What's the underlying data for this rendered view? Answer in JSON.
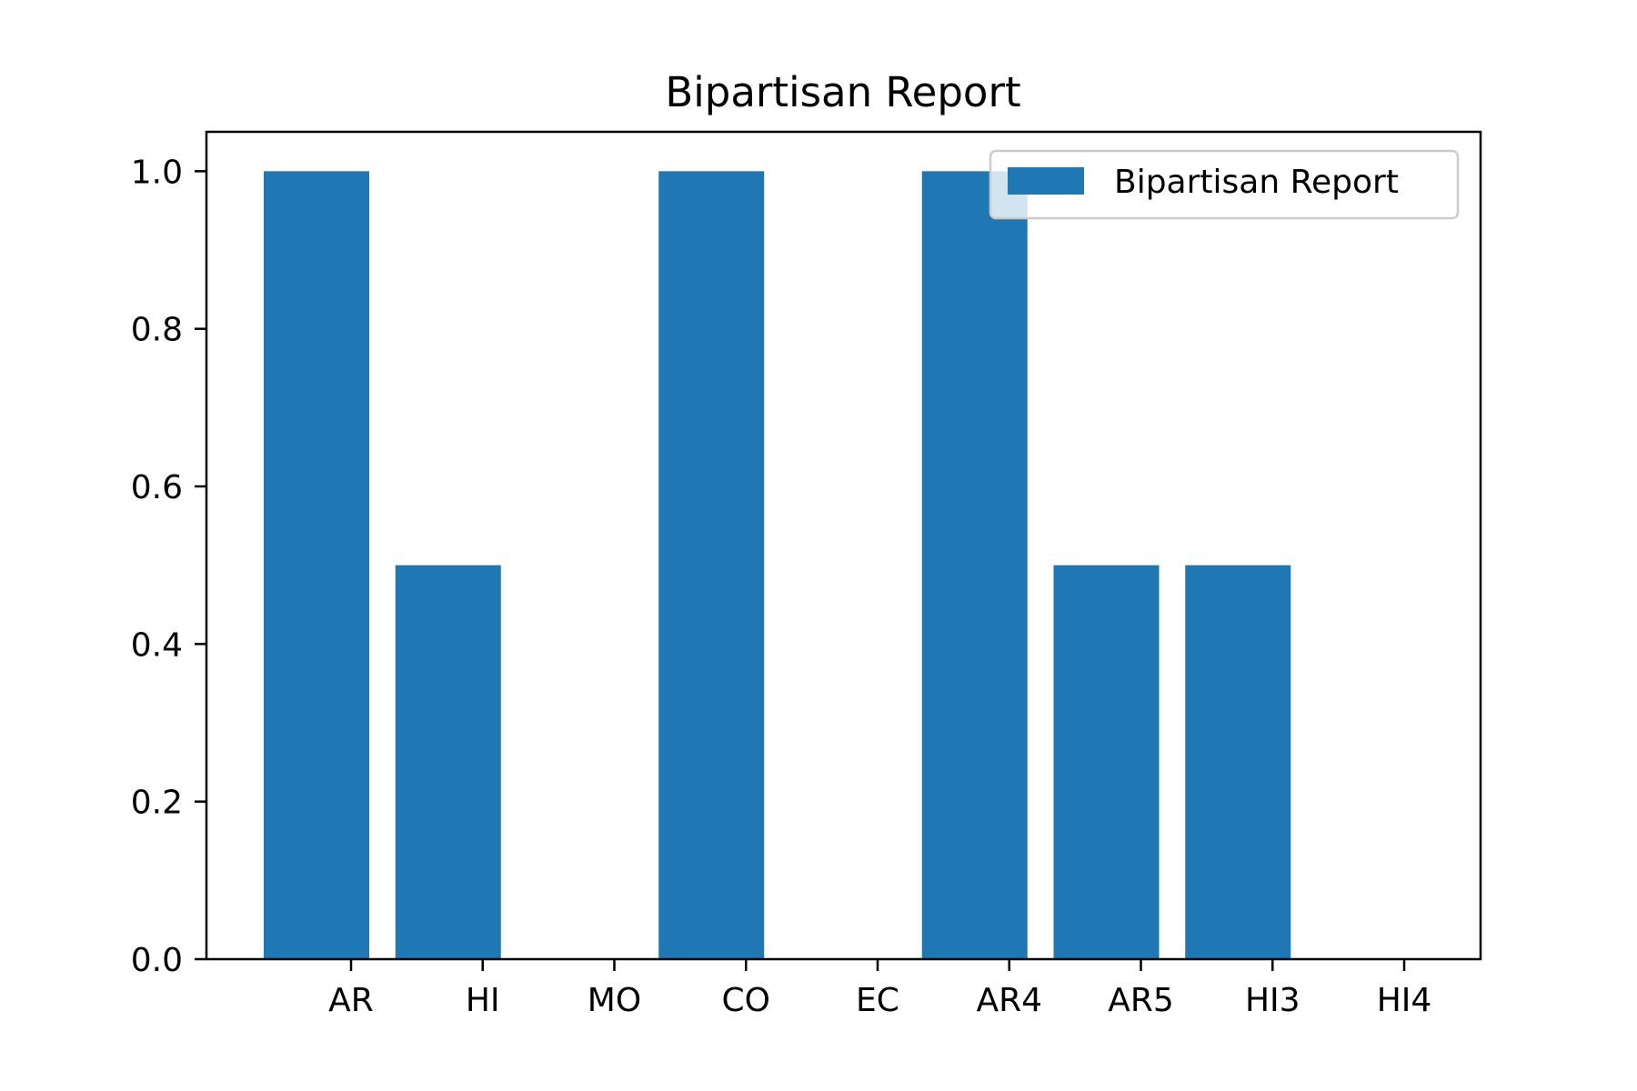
{
  "chart_data": {
    "type": "bar",
    "title": "Bipartisan Report",
    "xlabel": "",
    "ylabel": "",
    "ylim": [
      0,
      1.05
    ],
    "yticks": [
      "0.0",
      "0.2",
      "0.4",
      "0.6",
      "0.8",
      "1.0"
    ],
    "grid": false,
    "legend_placement": "top-right",
    "tick_categories": [
      "AR",
      "HI",
      "MO",
      "CO",
      "EC",
      "AR4",
      "AR5",
      "HI3",
      "HI4"
    ],
    "bar_color": "#1f77b4",
    "series": [
      {
        "name": "Bipartisan Report",
        "values": [
          1.0,
          0.5,
          0.0,
          1.0,
          0.0,
          1.0,
          0.5,
          0.5,
          0.0
        ]
      }
    ]
  }
}
